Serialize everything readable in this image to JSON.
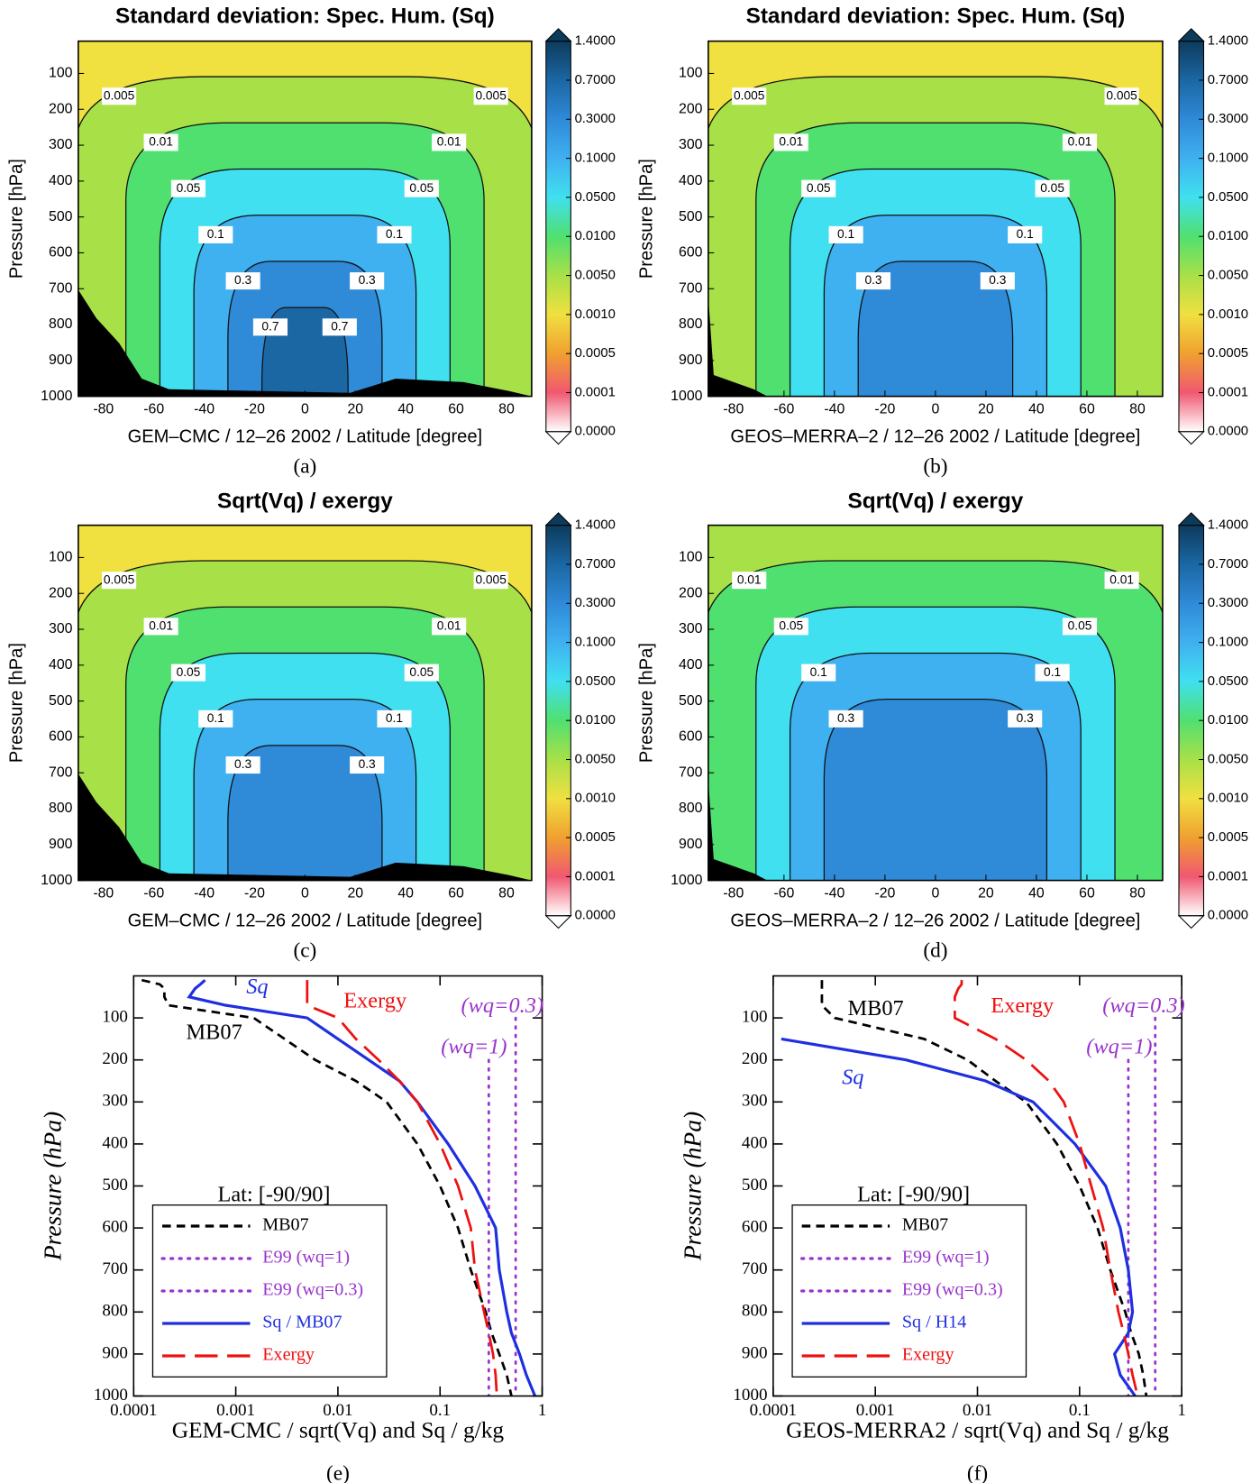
{
  "chart_data": [
    {
      "type": "contour",
      "title": "Standard deviation: Spec. Hum. (Sq)",
      "xlabel": "GEM–CMC / 12–26 2002 / Latitude [degree]",
      "ylabel": "Pressure [hPa]",
      "caption": "(a)",
      "xlim": [
        -90,
        90
      ],
      "xticks": [
        -80,
        -60,
        -40,
        -20,
        0,
        20,
        40,
        60,
        80
      ],
      "ylim": [
        1000,
        10
      ],
      "yticks": [
        100,
        200,
        300,
        400,
        500,
        600,
        700,
        800,
        900,
        1000
      ],
      "contour_levels": [
        0.005,
        0.01,
        0.05,
        0.1,
        0.3,
        0.7
      ],
      "terrain": "large",
      "colorbar": {
        "ticks": [
          {
            "value": 1.4,
            "label": "1.4000"
          },
          {
            "value": 0.7,
            "label": "0.7000"
          },
          {
            "value": 0.3,
            "label": "0.3000"
          },
          {
            "value": 0.1,
            "label": "0.1000"
          },
          {
            "value": 0.05,
            "label": "0.0500"
          },
          {
            "value": 0.01,
            "label": "0.0100"
          },
          {
            "value": 0.005,
            "label": "0.0050"
          },
          {
            "value": 0.001,
            "label": "0.0010"
          },
          {
            "value": 0.0005,
            "label": "0.0005"
          },
          {
            "value": 0.0001,
            "label": "0.0001"
          },
          {
            "value": 0,
            "label": "0.0000"
          }
        ],
        "colors": [
          "#0d3b5c",
          "#1b67a4",
          "#2f8ad8",
          "#3fb0f0",
          "#40e0f0",
          "#50e070",
          "#a8e048",
          "#f0e040",
          "#f0a030",
          "#f05870",
          "#ffffff"
        ]
      }
    },
    {
      "type": "contour",
      "title": "Standard deviation: Spec. Hum. (Sq)",
      "xlabel": "GEOS–MERRA–2 / 12–26 2002 / Latitude [degree]",
      "ylabel": "Pressure [hPa]",
      "caption": "(b)",
      "xlim": [
        -90,
        90
      ],
      "xticks": [
        -80,
        -60,
        -40,
        -20,
        0,
        20,
        40,
        60,
        80
      ],
      "ylim": [
        1000,
        10
      ],
      "yticks": [
        100,
        200,
        300,
        400,
        500,
        600,
        700,
        800,
        900,
        1000
      ],
      "contour_levels": [
        0.005,
        0.01,
        0.05,
        0.1,
        0.3
      ],
      "terrain": "small",
      "colorbar": {
        "ticks": [
          {
            "value": 1.4,
            "label": "1.4000"
          },
          {
            "value": 0.7,
            "label": "0.7000"
          },
          {
            "value": 0.3,
            "label": "0.3000"
          },
          {
            "value": 0.1,
            "label": "0.1000"
          },
          {
            "value": 0.05,
            "label": "0.0500"
          },
          {
            "value": 0.01,
            "label": "0.0100"
          },
          {
            "value": 0.005,
            "label": "0.0050"
          },
          {
            "value": 0.001,
            "label": "0.0010"
          },
          {
            "value": 0.0005,
            "label": "0.0005"
          },
          {
            "value": 0.0001,
            "label": "0.0001"
          },
          {
            "value": 0,
            "label": "0.0000"
          }
        ],
        "colors": [
          "#0d3b5c",
          "#1b67a4",
          "#2f8ad8",
          "#3fb0f0",
          "#40e0f0",
          "#50e070",
          "#a8e048",
          "#f0e040",
          "#f0a030",
          "#f05870",
          "#ffffff"
        ]
      }
    },
    {
      "type": "contour",
      "title": "Sqrt(Vq) / exergy",
      "xlabel": "GEM–CMC / 12–26 2002 / Latitude [degree]",
      "ylabel": "Pressure [hPa]",
      "caption": "(c)",
      "xlim": [
        -90,
        90
      ],
      "xticks": [
        -80,
        -60,
        -40,
        -20,
        0,
        20,
        40,
        60,
        80
      ],
      "ylim": [
        1000,
        10
      ],
      "yticks": [
        100,
        200,
        300,
        400,
        500,
        600,
        700,
        800,
        900,
        1000
      ],
      "contour_levels": [
        0.005,
        0.01,
        0.05,
        0.1,
        0.3
      ],
      "terrain": "large",
      "colorbar": {
        "ticks": [
          {
            "value": 1.4,
            "label": "1.4000"
          },
          {
            "value": 0.7,
            "label": "0.7000"
          },
          {
            "value": 0.3,
            "label": "0.3000"
          },
          {
            "value": 0.1,
            "label": "0.1000"
          },
          {
            "value": 0.05,
            "label": "0.0500"
          },
          {
            "value": 0.01,
            "label": "0.0100"
          },
          {
            "value": 0.005,
            "label": "0.0050"
          },
          {
            "value": 0.001,
            "label": "0.0010"
          },
          {
            "value": 0.0005,
            "label": "0.0005"
          },
          {
            "value": 0.0001,
            "label": "0.0001"
          },
          {
            "value": 0,
            "label": "0.0000"
          }
        ],
        "colors": [
          "#0d3b5c",
          "#1b67a4",
          "#2f8ad8",
          "#3fb0f0",
          "#40e0f0",
          "#50e070",
          "#a8e048",
          "#f0e040",
          "#f0a030",
          "#f05870",
          "#ffffff"
        ]
      }
    },
    {
      "type": "contour",
      "title": "Sqrt(Vq) / exergy",
      "xlabel": "GEOS–MERRA–2 / 12–26 2002 / Latitude [degree]",
      "ylabel": "Pressure [hPa]",
      "caption": "(d)",
      "xlim": [
        -90,
        90
      ],
      "xticks": [
        -80,
        -60,
        -40,
        -20,
        0,
        20,
        40,
        60,
        80
      ],
      "ylim": [
        1000,
        10
      ],
      "yticks": [
        100,
        200,
        300,
        400,
        500,
        600,
        700,
        800,
        900,
        1000
      ],
      "contour_levels": [
        0.01,
        0.05,
        0.1,
        0.3
      ],
      "terrain": "small",
      "colorbar": {
        "ticks": [
          {
            "value": 1.4,
            "label": "1.4000"
          },
          {
            "value": 0.7,
            "label": "0.7000"
          },
          {
            "value": 0.3,
            "label": "0.3000"
          },
          {
            "value": 0.1,
            "label": "0.1000"
          },
          {
            "value": 0.05,
            "label": "0.0500"
          },
          {
            "value": 0.01,
            "label": "0.0100"
          },
          {
            "value": 0.005,
            "label": "0.0050"
          },
          {
            "value": 0.001,
            "label": "0.0010"
          },
          {
            "value": 0.0005,
            "label": "0.0005"
          },
          {
            "value": 0.0001,
            "label": "0.0001"
          },
          {
            "value": 0,
            "label": "0.0000"
          }
        ],
        "colors": [
          "#0d3b5c",
          "#1b67a4",
          "#2f8ad8",
          "#3fb0f0",
          "#40e0f0",
          "#50e070",
          "#a8e048",
          "#f0e040",
          "#f0a030",
          "#f05870",
          "#ffffff"
        ]
      }
    },
    {
      "type": "line",
      "xlabel": "GEM-CMC / sqrt(Vq) and Sq / g/kg",
      "ylabel": "Pressure (hPa)",
      "caption": "(e)",
      "xscale": "log",
      "xlim": [
        0.0001,
        1
      ],
      "xticks": [
        0.0001,
        0.001,
        0.01,
        0.1,
        1
      ],
      "ylim": [
        1000,
        0
      ],
      "yticks": [
        100,
        200,
        300,
        400,
        500,
        600,
        700,
        800,
        900,
        1000
      ],
      "legend": "lower left",
      "y": [
        10,
        20,
        30,
        50,
        70,
        100,
        150,
        200,
        250,
        300,
        400,
        500,
        600,
        700,
        800,
        850,
        900,
        950,
        1000
      ],
      "series": [
        {
          "name": "MB07",
          "color": "#000000",
          "style": "dashed",
          "values": [
            0.00012,
            0.00018,
            0.0002,
            0.0002,
            0.00022,
            0.0015,
            0.003,
            0.006,
            0.015,
            0.03,
            0.06,
            0.1,
            0.15,
            0.2,
            0.28,
            0.32,
            0.38,
            0.45,
            0.5
          ]
        },
        {
          "name": "E99 (wq=1)",
          "color": "#9933cc",
          "style": "dotted",
          "values": [
            null,
            null,
            null,
            null,
            null,
            null,
            null,
            0.3,
            0.3,
            0.3,
            0.3,
            0.3,
            0.3,
            0.3,
            0.3,
            0.3,
            0.3,
            0.3,
            0.3
          ]
        },
        {
          "name": "E99 (wq=0.3)",
          "color": "#9933cc",
          "style": "dotted",
          "values": [
            null,
            null,
            null,
            null,
            null,
            0.55,
            0.55,
            0.55,
            0.55,
            0.55,
            0.55,
            0.55,
            0.55,
            0.55,
            0.55,
            0.55,
            0.55,
            0.55,
            0.55
          ]
        },
        {
          "name": "Sq / MB07",
          "color": "#1f2fe0",
          "style": "solid",
          "values": [
            0.0005,
            0.00045,
            0.0004,
            0.00035,
            0.0008,
            0.005,
            0.01,
            0.02,
            0.04,
            0.06,
            0.12,
            0.22,
            0.35,
            0.38,
            0.45,
            0.5,
            0.6,
            0.7,
            0.85
          ]
        },
        {
          "name": "Exergy",
          "color": "#ee1111",
          "style": "longdash",
          "values": [
            0.005,
            0.005,
            0.005,
            0.005,
            0.005,
            0.01,
            0.015,
            0.025,
            0.04,
            0.06,
            0.1,
            0.15,
            0.2,
            0.22,
            0.27,
            0.3,
            0.33,
            0.35,
            0.36
          ]
        }
      ],
      "annotations": [
        {
          "text": "Sq",
          "color": "#1f2fe0"
        },
        {
          "text": "Exergy",
          "color": "#ee1111"
        },
        {
          "text": "MB07",
          "color": "#000000"
        },
        {
          "text": "(wq=0.3)",
          "color": "#9933cc"
        },
        {
          "text": "(wq=1)",
          "color": "#9933cc"
        },
        {
          "text": "Lat: [-90/90]",
          "color": "#000000"
        }
      ]
    },
    {
      "type": "line",
      "xlabel": "GEOS-MERRA2 / sqrt(Vq) and Sq / g/kg",
      "ylabel": "Pressure (hPa)",
      "caption": "(f)",
      "xscale": "log",
      "xlim": [
        0.0001,
        1
      ],
      "xticks": [
        0.0001,
        0.001,
        0.01,
        0.1,
        1
      ],
      "ylim": [
        1000,
        0
      ],
      "yticks": [
        100,
        200,
        300,
        400,
        500,
        600,
        700,
        800,
        900,
        1000
      ],
      "legend": "lower left",
      "y": [
        10,
        20,
        30,
        50,
        70,
        100,
        150,
        200,
        250,
        300,
        400,
        500,
        600,
        700,
        800,
        850,
        900,
        950,
        1000
      ],
      "series": [
        {
          "name": "MB07",
          "color": "#000000",
          "style": "dashed",
          "values": [
            0.0003,
            0.0003,
            0.0003,
            0.0003,
            0.0003,
            0.0004,
            0.003,
            0.008,
            0.015,
            0.03,
            0.06,
            0.1,
            0.15,
            0.2,
            0.28,
            0.32,
            0.38,
            0.42,
            0.45
          ]
        },
        {
          "name": "E99 (wq=1)",
          "color": "#9933cc",
          "style": "dotted",
          "values": [
            null,
            null,
            null,
            null,
            null,
            null,
            null,
            0.3,
            0.3,
            0.3,
            0.3,
            0.3,
            0.3,
            0.3,
            0.3,
            0.3,
            0.3,
            0.3,
            0.3
          ]
        },
        {
          "name": "E99 (wq=0.3)",
          "color": "#9933cc",
          "style": "dotted",
          "values": [
            null,
            null,
            null,
            null,
            null,
            0.55,
            0.55,
            0.55,
            0.55,
            0.55,
            0.55,
            0.55,
            0.55,
            0.55,
            0.55,
            0.55,
            0.55,
            0.55,
            0.55
          ]
        },
        {
          "name": "Sq / H14",
          "color": "#1f2fe0",
          "style": "solid",
          "values": [
            null,
            null,
            null,
            null,
            null,
            null,
            0.00012,
            0.002,
            0.012,
            0.035,
            0.09,
            0.18,
            0.25,
            0.3,
            0.33,
            0.3,
            0.22,
            0.25,
            0.35
          ]
        },
        {
          "name": "Exergy",
          "color": "#ee1111",
          "style": "longdash",
          "values": [
            0.007,
            0.007,
            0.0065,
            0.006,
            0.006,
            0.006,
            0.015,
            0.03,
            0.05,
            0.07,
            0.1,
            0.13,
            0.17,
            0.2,
            0.24,
            0.27,
            0.3,
            0.33,
            0.37
          ]
        }
      ],
      "annotations": [
        {
          "text": "Sq",
          "color": "#1f2fe0"
        },
        {
          "text": "Exergy",
          "color": "#ee1111"
        },
        {
          "text": "MB07",
          "color": "#000000"
        },
        {
          "text": "(wq=0.3)",
          "color": "#9933cc"
        },
        {
          "text": "(wq=1)",
          "color": "#9933cc"
        },
        {
          "text": "Lat: [-90/90]",
          "color": "#000000"
        }
      ]
    }
  ]
}
